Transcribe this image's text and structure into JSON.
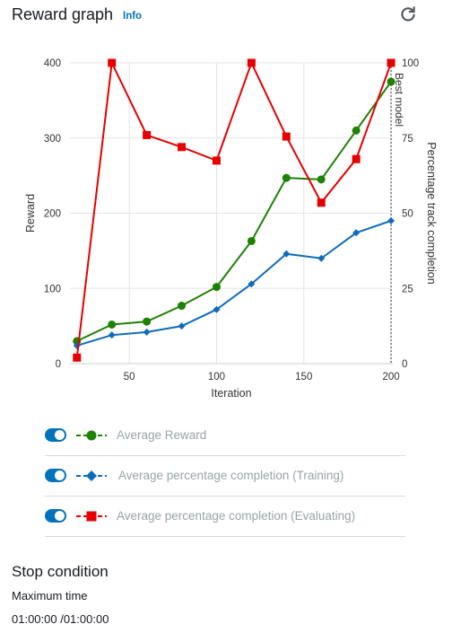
{
  "header": {
    "title": "Reward graph",
    "info": "Info"
  },
  "chart_data": {
    "type": "line",
    "xlabel": "Iteration",
    "ylabel_left": "Reward",
    "ylabel_right": "Percentage track completion",
    "xlim": [
      16,
      201
    ],
    "ylim_left": [
      0,
      400
    ],
    "ylim_right": [
      0,
      100
    ],
    "x_ticks": [
      50,
      100,
      150,
      200
    ],
    "y_left_ticks": [
      0,
      100,
      200,
      300,
      400
    ],
    "y_right_ticks": [
      0,
      25,
      50,
      75,
      100
    ],
    "grid": true,
    "annotation": {
      "label": "Best model",
      "x": 200
    },
    "series": [
      {
        "name": "Average Reward",
        "axis": "left",
        "color": "#1d8102",
        "marker": "circle",
        "x": [
          20,
          40,
          60,
          80,
          100,
          120,
          140,
          160,
          180,
          200
        ],
        "values": [
          30,
          52,
          56,
          77,
          102,
          163,
          247,
          245,
          310,
          375
        ]
      },
      {
        "name": "Average percentage completion (Training)",
        "axis": "right",
        "color": "#0f6cbd",
        "marker": "diamond",
        "x": [
          20,
          40,
          60,
          80,
          100,
          120,
          140,
          160,
          180,
          200
        ],
        "values": [
          6,
          9.5,
          10.5,
          12.5,
          18,
          26.5,
          36.5,
          35,
          43.5,
          47.5
        ]
      },
      {
        "name": "Average percentage completion (Evaluating)",
        "axis": "right",
        "color": "#e60000",
        "marker": "square",
        "x": [
          20,
          40,
          60,
          80,
          100,
          120,
          140,
          160,
          180,
          200
        ],
        "values": [
          2,
          100,
          76,
          72,
          67.5,
          100,
          75.5,
          53.5,
          68,
          100
        ]
      }
    ]
  },
  "stop": {
    "title": "Stop condition",
    "subtitle": "Maximum time",
    "value": "01:00:00 /01:00:00"
  },
  "colors": {
    "accent": "#0073bb"
  },
  "icons": {
    "refresh": "refresh-icon"
  }
}
